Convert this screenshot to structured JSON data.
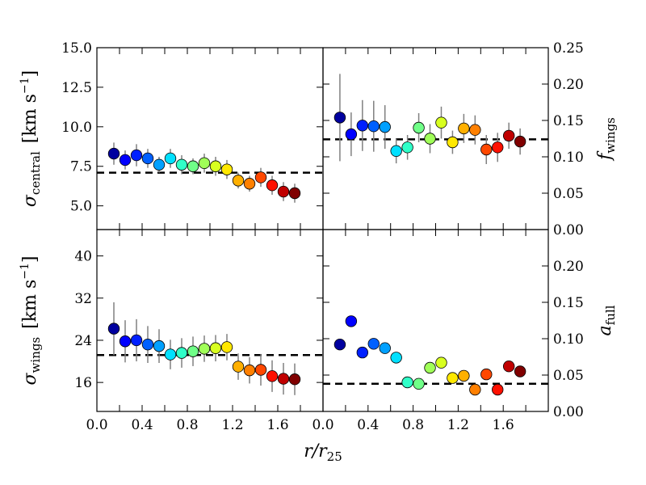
{
  "chart_data": {
    "type": "scatter",
    "x_label": {
      "main": "r/r",
      "sub": "25"
    },
    "x_ticks": [
      "0.0",
      "0.4",
      "0.8",
      "1.2",
      "1.6"
    ],
    "x_range": [
      0.0,
      2.0
    ],
    "x": [
      0.15,
      0.25,
      0.35,
      0.45,
      0.55,
      0.65,
      0.75,
      0.85,
      0.95,
      1.05,
      1.15,
      1.25,
      1.35,
      1.45,
      1.55,
      1.65,
      1.75
    ],
    "marker_colors": [
      "#00009f",
      "#0000ff",
      "#0020ff",
      "#0060ff",
      "#00a0ff",
      "#00e0ff",
      "#30ffc8",
      "#70ff88",
      "#a0ff58",
      "#d8ff20",
      "#ffe800",
      "#ffb000",
      "#ff8000",
      "#ff4800",
      "#ff1000",
      "#c00000",
      "#800000"
    ],
    "panels": [
      {
        "name": "sigma-central",
        "position": "top-left",
        "ylabel": {
          "sym": "σ",
          "sub": "central",
          "unit": "[km s",
          "exp": "−1",
          "close": "]"
        },
        "y_range": [
          3.5,
          15.0
        ],
        "y_ticks": [
          "5.0",
          "7.5",
          "10.0",
          "12.5",
          "15.0"
        ],
        "reference_line": 7.1,
        "values": [
          8.3,
          7.9,
          8.2,
          8.0,
          7.6,
          8.0,
          7.6,
          7.5,
          7.7,
          7.5,
          7.3,
          6.6,
          6.4,
          6.8,
          6.3,
          5.9,
          5.8
        ],
        "errors": [
          0.7,
          0.6,
          0.7,
          0.6,
          0.5,
          0.6,
          0.6,
          0.5,
          0.6,
          0.6,
          0.6,
          0.5,
          0.5,
          0.6,
          0.6,
          0.6,
          0.6
        ]
      },
      {
        "name": "f-wings",
        "position": "top-right",
        "ylabel": {
          "sym": "f",
          "sub": "wings"
        },
        "y_range": [
          0.0,
          0.25
        ],
        "y_ticks": [
          "0.00",
          "0.05",
          "0.10",
          "0.15",
          "0.20",
          "0.25"
        ],
        "reference_line": 0.124,
        "values": [
          0.154,
          0.131,
          0.143,
          0.142,
          0.141,
          0.108,
          0.113,
          0.14,
          0.125,
          0.147,
          0.12,
          0.139,
          0.137,
          0.11,
          0.113,
          0.129,
          0.121
        ],
        "errors": [
          0.06,
          0.03,
          0.035,
          0.035,
          0.03,
          0.017,
          0.017,
          0.02,
          0.02,
          0.022,
          0.016,
          0.02,
          0.02,
          0.02,
          0.02,
          0.018,
          0.018
        ]
      },
      {
        "name": "sigma-wings",
        "position": "bottom-left",
        "ylabel": {
          "sym": "σ",
          "sub": "wings",
          "unit": "[km s",
          "exp": "−1",
          "close": "]"
        },
        "y_range": [
          10.5,
          45.0
        ],
        "y_ticks": [
          "16",
          "24",
          "32",
          "40"
        ],
        "reference_line": 21.2,
        "values": [
          26.2,
          23.8,
          24.0,
          23.2,
          22.9,
          21.3,
          21.6,
          21.9,
          22.4,
          22.5,
          22.7,
          19.0,
          18.3,
          18.4,
          17.2,
          16.7,
          16.6
        ],
        "errors": [
          5.0,
          4.0,
          4.0,
          3.5,
          3.2,
          2.8,
          2.8,
          2.8,
          2.5,
          2.5,
          2.5,
          2.5,
          2.5,
          3.0,
          3.0,
          3.0,
          3.0
        ]
      },
      {
        "name": "a-full",
        "position": "bottom-right",
        "ylabel": {
          "sym": "a",
          "sub": "full"
        },
        "y_range": [
          0.0,
          0.25
        ],
        "y_ticks": [
          "0.00",
          "0.05",
          "0.10",
          "0.15",
          "0.20"
        ],
        "reference_line": 0.038,
        "values": [
          0.092,
          0.124,
          0.081,
          0.093,
          0.087,
          0.074,
          0.04,
          0.038,
          0.06,
          0.067,
          0.046,
          0.049,
          0.03,
          0.051,
          0.03,
          0.062,
          0.055
        ],
        "errors": []
      }
    ]
  }
}
